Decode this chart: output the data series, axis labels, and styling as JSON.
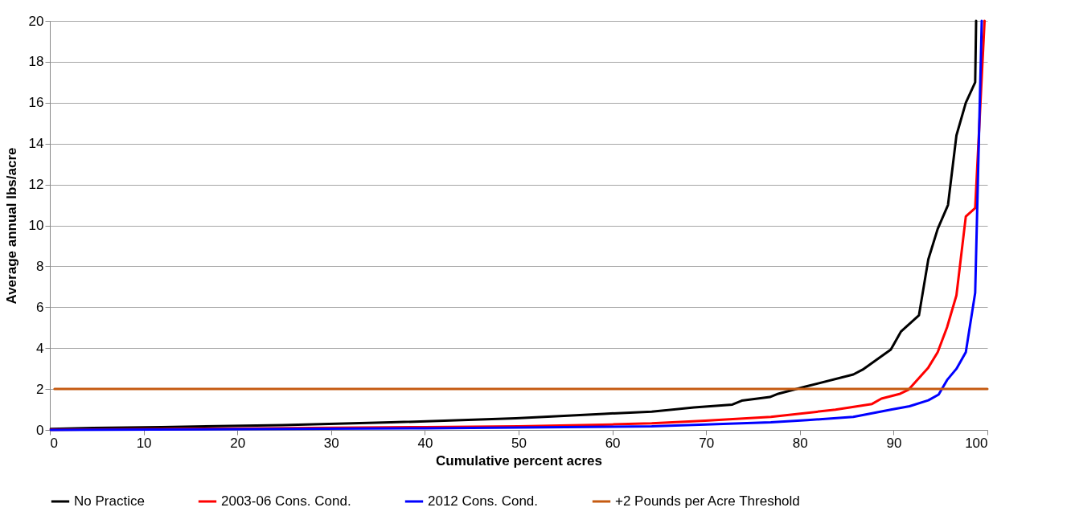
{
  "chart_data": {
    "type": "line",
    "xlabel": "Cumulative percent acres",
    "ylabel": "Average annual lbs/acre",
    "xlim": [
      0,
      100
    ],
    "xticks": [
      0,
      10,
      20,
      30,
      40,
      50,
      60,
      70,
      80,
      90,
      100
    ],
    "ylim": [
      0,
      20
    ],
    "yticks": [
      0,
      2,
      4,
      6,
      8,
      10,
      12,
      14,
      16,
      18,
      20
    ],
    "grid": "y",
    "legend": "bottom",
    "marker": "none",
    "line_style": "solid",
    "series": [
      {
        "name": "No Practice",
        "color": "#000000",
        "x": [
          0.1,
          4.6,
          11.9,
          24.8,
          36.4,
          49.7,
          59.1,
          64.2,
          68.7,
          72.8,
          73.8,
          76.8,
          77.7,
          80.7,
          85.7,
          86.7,
          89.7,
          90.8,
          92.7,
          93.7,
          94.7,
          95.8,
          96.7,
          97.7,
          98.7,
          98.8
        ],
        "values": [
          0.05,
          0.1,
          0.14,
          0.24,
          0.37,
          0.57,
          0.79,
          0.89,
          1.1,
          1.24,
          1.43,
          1.61,
          1.77,
          2.13,
          2.71,
          2.95,
          3.93,
          4.82,
          5.6,
          8.34,
          9.83,
          11.0,
          14.4,
          16.0,
          17.0,
          20
        ]
      },
      {
        "name": "2003-06 Cons. Cond.",
        "color": "#ff0000",
        "x": [
          0.1,
          20,
          40,
          50,
          60,
          64.2,
          69.9,
          76.9,
          83.8,
          87.7,
          88.7,
          90.7,
          91.6,
          93.7,
          94.7,
          95.7,
          96.7,
          97.7,
          98.7,
          99.7
        ],
        "values": [
          0.01,
          0.07,
          0.14,
          0.18,
          0.27,
          0.32,
          0.45,
          0.64,
          0.99,
          1.27,
          1.53,
          1.77,
          1.97,
          3.05,
          3.8,
          5.02,
          6.58,
          10.44,
          10.85,
          20
        ]
      },
      {
        "name": "2012 Cons. Cond.",
        "color": "#0000ff",
        "x": [
          0.1,
          20,
          40,
          50,
          60,
          64.2,
          76.9,
          80.8,
          85.7,
          89.7,
          91.7,
          93.7,
          94.8,
          95.7,
          96.7,
          97.7,
          98.7,
          99.4
        ],
        "values": [
          0.0,
          0.04,
          0.08,
          0.12,
          0.16,
          0.18,
          0.37,
          0.48,
          0.64,
          0.99,
          1.16,
          1.45,
          1.73,
          2.44,
          2.99,
          3.8,
          6.71,
          20
        ]
      },
      {
        "name": "+2 Pounds per Acre Threshold",
        "color": "#c55a11",
        "x": [
          0.5,
          100
        ],
        "values": [
          2,
          2
        ]
      }
    ]
  }
}
